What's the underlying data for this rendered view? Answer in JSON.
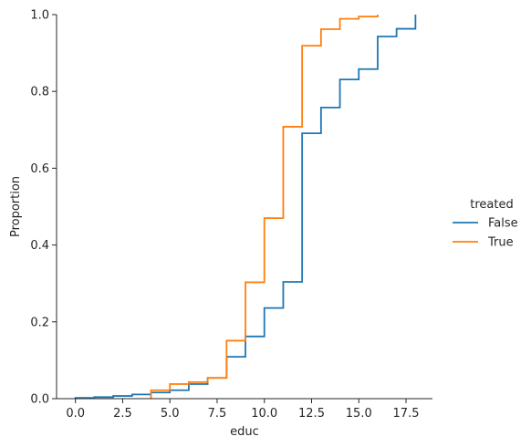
{
  "chart_data": {
    "type": "line",
    "subtype": "ecdf",
    "xlabel": "educ",
    "ylabel": "Proportion",
    "xlim": [
      -1.0,
      18.9
    ],
    "ylim": [
      0,
      1.0
    ],
    "xticks": [
      0.0,
      2.5,
      5.0,
      7.5,
      10.0,
      12.5,
      15.0,
      17.5
    ],
    "xtick_labels": [
      "0.0",
      "2.5",
      "5.0",
      "7.5",
      "10.0",
      "12.5",
      "15.0",
      "17.5"
    ],
    "yticks": [
      0.0,
      0.2,
      0.4,
      0.6,
      0.8,
      1.0
    ],
    "ytick_labels": [
      "0.0",
      "0.2",
      "0.4",
      "0.6",
      "0.8",
      "1.0"
    ],
    "grid": false,
    "legend": {
      "title": "treated",
      "placement": "right"
    },
    "series": [
      {
        "name": "False",
        "color": "#1f77b4",
        "x": [
          0,
          1,
          2,
          3,
          4,
          5,
          6,
          7,
          8,
          9,
          10,
          11,
          12,
          13,
          14,
          15,
          16,
          17,
          18
        ],
        "y": [
          0.002,
          0.004,
          0.007,
          0.011,
          0.016,
          0.022,
          0.038,
          0.054,
          0.109,
          0.162,
          0.236,
          0.304,
          0.691,
          0.758,
          0.831,
          0.858,
          0.943,
          0.963,
          1.0
        ]
      },
      {
        "name": "True",
        "color": "#ff7f0e",
        "x": [
          4,
          5,
          6,
          7,
          8,
          9,
          10,
          11,
          12,
          13,
          14,
          15,
          16
        ],
        "y": [
          0.022,
          0.038,
          0.043,
          0.054,
          0.151,
          0.303,
          0.47,
          0.708,
          0.919,
          0.962,
          0.989,
          0.995,
          1.0
        ]
      }
    ]
  }
}
